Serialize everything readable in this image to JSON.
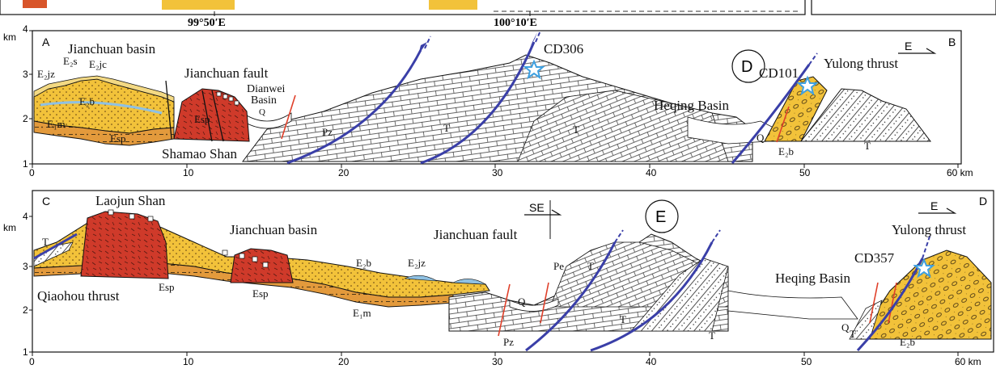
{
  "top_strip": {
    "lon_left": "99°50′E",
    "lon_right": "100°10′E"
  },
  "panel_top": {
    "corner_left": "A",
    "corner_right": "B",
    "circle_label": "D",
    "direction_label": "E",
    "y_unit": "km",
    "y_ticks": [
      "1",
      "2",
      "3",
      "4"
    ],
    "x_ticks": [
      "0",
      "10",
      "20",
      "30",
      "40",
      "50",
      "60 km"
    ],
    "labels": {
      "basin": "Jianchuan basin",
      "fault": "Jianchuan fault",
      "dianwei1": "Dianwei",
      "dianwei2": "Basin",
      "shamao": "Shamao Shan",
      "sample1": "CD306",
      "sample2": "CD101",
      "heqing": "Heqing Basin",
      "yulong": "Yulong thrust",
      "e2jz": "E₂jz",
      "e2s": "E₂s",
      "e2jc": "E₂jc",
      "e2b": "E₂b",
      "e1m": "E₁m",
      "esp_a": "Esp",
      "esp_b": "Esp",
      "q1": "Q",
      "q2": "Q",
      "pz": "Pz",
      "t1": "T",
      "t2": "T",
      "t3": "T",
      "e2b_right": "E₂b"
    }
  },
  "panel_bottom": {
    "corner_left": "C",
    "corner_right": "D",
    "circle_label": "E",
    "direction_label": "E",
    "se_label": "SE",
    "y_unit": "km",
    "y_ticks": [
      "1",
      "2",
      "3",
      "4"
    ],
    "x_ticks": [
      "0",
      "10",
      "20",
      "30",
      "40",
      "50",
      "60 km"
    ],
    "labels": {
      "laojun": "Laojun Shan",
      "basin": "Jianchuan basin",
      "fault": "Jianchuan fault",
      "qiaohou": "Qiaohou thrust",
      "esp1": "Esp",
      "esp2": "Esp",
      "e2b": "E₂b",
      "e2jz": "E₂jz",
      "e1m": "E₁m",
      "pe": "Pe",
      "q1": "Q",
      "q2": "Q",
      "t_left": "T",
      "t1": "T",
      "t2": "T",
      "t3": "T",
      "t_right": "T",
      "pz": "Pz",
      "e2b_right": "E₂b",
      "heqing": "Heqing Basin",
      "sample": "CD357",
      "yulong": "Yulong thrust"
    }
  },
  "colors": {
    "basin_fill": "#f2c23a",
    "e1m_fill": "#e39a3c",
    "granite_fill": "#cf3a2a",
    "thrust_blue": "#3a3fa8",
    "fault_red": "#e0402a",
    "lake_blue": "#8fc1e3",
    "star_blue": "#3fa0e0"
  }
}
